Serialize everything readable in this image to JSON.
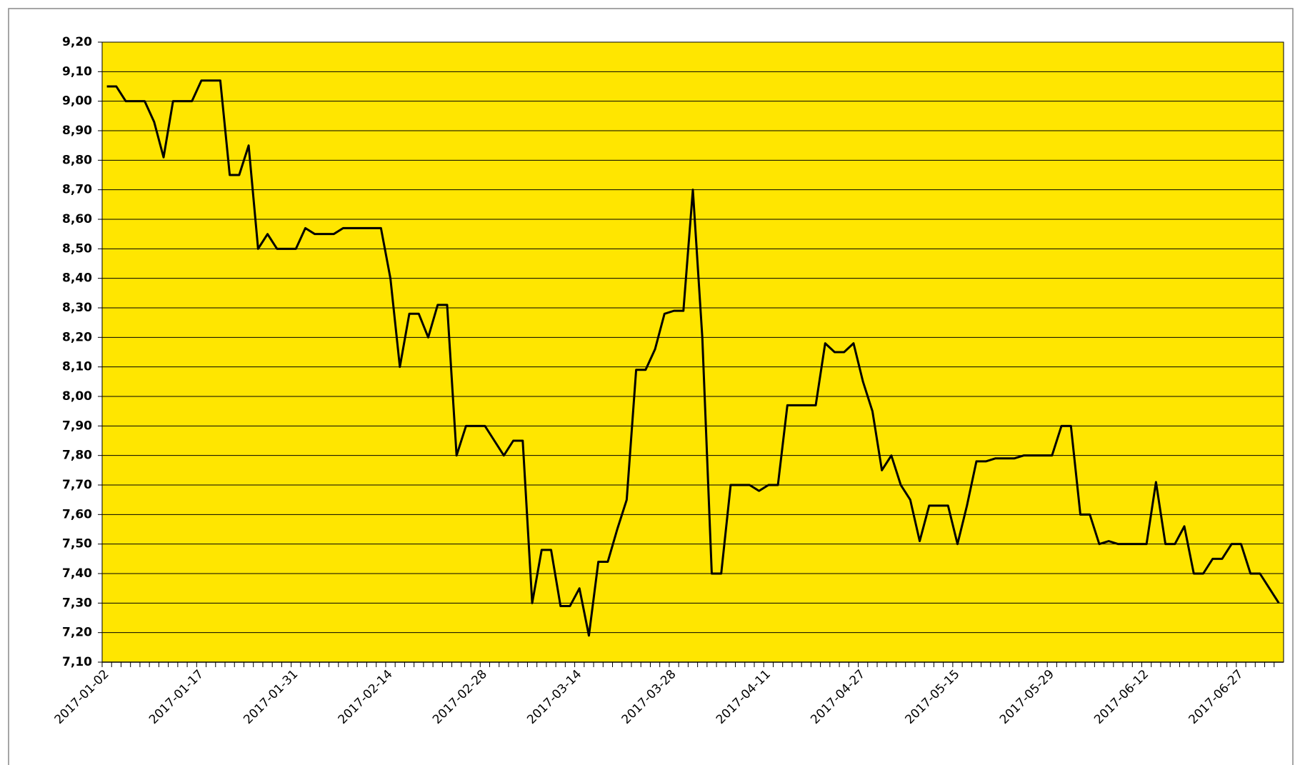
{
  "chart_data": {
    "type": "line",
    "categories": [
      "2017-01-02",
      null,
      null,
      null,
      null,
      null,
      null,
      null,
      null,
      null,
      "2017-01-17",
      null,
      null,
      null,
      null,
      null,
      null,
      null,
      null,
      null,
      "2017-01-31",
      null,
      null,
      null,
      null,
      null,
      null,
      null,
      null,
      null,
      "2017-02-14",
      null,
      null,
      null,
      null,
      null,
      null,
      null,
      null,
      null,
      "2017-02-28",
      null,
      null,
      null,
      null,
      null,
      null,
      null,
      null,
      null,
      "2017-03-14",
      null,
      null,
      null,
      null,
      null,
      null,
      null,
      null,
      null,
      "2017-03-28",
      null,
      null,
      null,
      null,
      null,
      null,
      null,
      null,
      null,
      "2017-04-11",
      null,
      null,
      null,
      null,
      null,
      null,
      null,
      null,
      null,
      "2017-04-27",
      null,
      null,
      null,
      null,
      null,
      null,
      null,
      null,
      null,
      "2017-05-15",
      null,
      null,
      null,
      null,
      null,
      null,
      null,
      null,
      null,
      "2017-05-29",
      null,
      null,
      null,
      null,
      null,
      null,
      null,
      null,
      null,
      "2017-06-12",
      null,
      null,
      null,
      null,
      null,
      null,
      null,
      null,
      null,
      "2017-06-27",
      null,
      null,
      null,
      null
    ],
    "values": [
      9.05,
      9.05,
      9.0,
      9.0,
      9.0,
      8.93,
      8.81,
      9.0,
      9.0,
      9.0,
      9.07,
      9.07,
      9.07,
      8.75,
      8.75,
      8.85,
      8.5,
      8.55,
      8.5,
      8.5,
      8.5,
      8.57,
      8.55,
      8.55,
      8.55,
      8.57,
      8.57,
      8.57,
      8.57,
      8.57,
      8.4,
      8.1,
      8.28,
      8.28,
      8.2,
      8.31,
      8.31,
      7.8,
      7.9,
      7.9,
      7.9,
      7.85,
      7.8,
      7.85,
      7.85,
      7.3,
      7.48,
      7.48,
      7.29,
      7.29,
      7.35,
      7.19,
      7.44,
      7.44,
      7.55,
      7.65,
      8.09,
      8.09,
      8.16,
      8.28,
      8.29,
      8.29,
      8.7,
      8.2,
      7.4,
      7.4,
      7.7,
      7.7,
      7.7,
      7.68,
      7.7,
      7.7,
      7.97,
      7.97,
      7.97,
      7.97,
      8.18,
      8.15,
      8.15,
      8.18,
      8.05,
      7.95,
      7.75,
      7.8,
      7.7,
      7.65,
      7.51,
      7.63,
      7.63,
      7.63,
      7.5,
      7.63,
      7.78,
      7.78,
      7.79,
      7.79,
      7.79,
      7.8,
      7.8,
      7.8,
      7.8,
      7.9,
      7.9,
      7.6,
      7.6,
      7.5,
      7.51,
      7.5,
      7.5,
      7.5,
      7.5,
      7.71,
      7.5,
      7.5,
      7.56,
      7.4,
      7.4,
      7.45,
      7.45,
      7.5,
      7.5,
      7.4,
      7.4,
      7.35,
      7.3
    ],
    "color": "#000000",
    "background": "#ffe600",
    "ylim": [
      7.1,
      9.2
    ],
    "yticks": [
      {
        "value": 7.1,
        "label": "7,10"
      },
      {
        "value": 7.2,
        "label": "7,20"
      },
      {
        "value": 7.3,
        "label": "7,30"
      },
      {
        "value": 7.4,
        "label": "7,40"
      },
      {
        "value": 7.5,
        "label": "7,50"
      },
      {
        "value": 7.6,
        "label": "7,60"
      },
      {
        "value": 7.7,
        "label": "7,70"
      },
      {
        "value": 7.8,
        "label": "7,80"
      },
      {
        "value": 7.9,
        "label": "7,90"
      },
      {
        "value": 8.0,
        "label": "8,00"
      },
      {
        "value": 8.1,
        "label": "8,10"
      },
      {
        "value": 8.2,
        "label": "8,20"
      },
      {
        "value": 8.3,
        "label": "8,30"
      },
      {
        "value": 8.4,
        "label": "8,40"
      },
      {
        "value": 8.5,
        "label": "8,50"
      },
      {
        "value": 8.6,
        "label": "8,60"
      },
      {
        "value": 8.7,
        "label": "8,70"
      },
      {
        "value": 8.8,
        "label": "8,80"
      },
      {
        "value": 8.9,
        "label": "8,90"
      },
      {
        "value": 9.0,
        "label": "9,00"
      },
      {
        "value": 9.1,
        "label": "9,10"
      },
      {
        "value": 9.2,
        "label": "9,20"
      }
    ],
    "grid": true
  }
}
